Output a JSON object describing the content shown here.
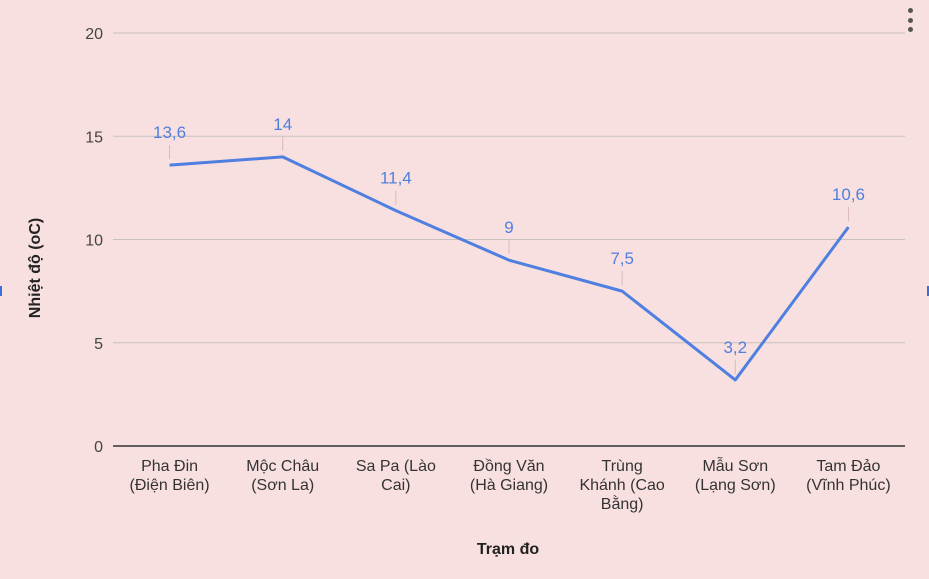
{
  "chart_data": {
    "type": "line",
    "title": "",
    "xlabel": "Trạm đo",
    "ylabel": "Nhiệt độ (oC)",
    "ylim": [
      0,
      20
    ],
    "yticks": [
      0,
      5,
      10,
      15,
      20
    ],
    "grid": true,
    "categories": [
      [
        "Pha Đin",
        "(Điện Biên)"
      ],
      [
        "Mộc Châu",
        "(Sơn La)"
      ],
      [
        "Sa Pa (Lào",
        "Cai)"
      ],
      [
        "Đồng Văn",
        "(Hà Giang)"
      ],
      [
        "Trùng",
        "Khánh (Cao",
        "Bằng)"
      ],
      [
        "Mẫu Sơn",
        "(Lạng Sơn)"
      ],
      [
        "Tam Đảo",
        "(Vĩnh Phúc)"
      ]
    ],
    "series": [
      {
        "values": [
          13.6,
          14,
          11.4,
          9,
          7.5,
          3.2,
          10.6
        ],
        "data_labels": [
          "13,6",
          "14",
          "11,4",
          "9",
          "7,5",
          "3,2",
          "10,6"
        ],
        "color": "#4f7fe0"
      }
    ]
  },
  "menu": {
    "icon": "more-vert-icon"
  }
}
